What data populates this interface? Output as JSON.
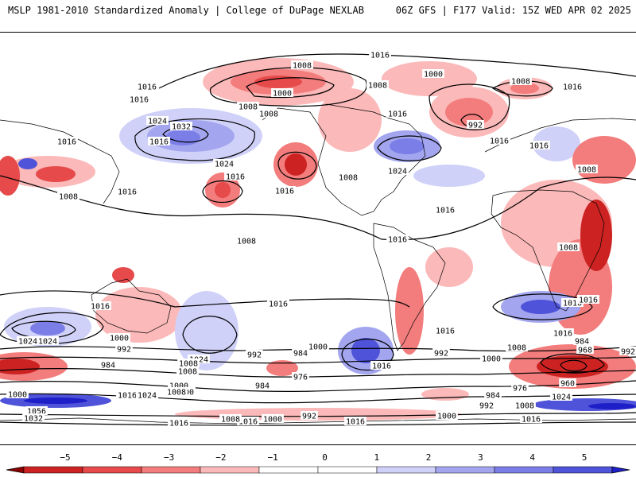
{
  "header": {
    "left": "MSLP 1981-2010 Standardized Anomaly | College of DuPage NEXLAB",
    "right": "06Z GFS | F177 Valid: 15Z WED APR 02 2025"
  },
  "colors": {
    "neg5": "#8b0000",
    "neg4": "#cc2222",
    "neg3": "#e64a4a",
    "neg2": "#f37c7c",
    "neg1": "#fbb9b9",
    "pos1": "#cfd1f8",
    "pos2": "#a3a6ef",
    "pos3": "#7a7ee6",
    "pos4": "#4f53d9",
    "pos5": "#1f1fc8",
    "contour": "#000000",
    "coast": "#000000"
  },
  "colorbar": {
    "ticks": [
      "−5",
      "−4",
      "−3",
      "−2",
      "−1",
      "0",
      "1",
      "2",
      "3",
      "4",
      "5"
    ]
  },
  "contour_labels": [
    "1016",
    "1008",
    "1000",
    "1008",
    "1008",
    "1016",
    "1016",
    "1016",
    "1000",
    "992",
    "1016",
    "1024",
    "1032",
    "1016",
    "1008",
    "1008",
    "1016",
    "1024",
    "1016",
    "1016",
    "1008",
    "1024",
    "1024",
    "1016",
    "1016",
    "1016",
    "1008",
    "1008",
    "1016",
    "1008",
    "1016",
    "1016",
    "1016",
    "1016",
    "1016",
    "1016",
    "1024",
    "1000",
    "992",
    "984",
    "1008",
    "1024",
    "992",
    "984",
    "1000",
    "976",
    "1008",
    "1000",
    "1016",
    "1024",
    "992",
    "1000",
    "1008",
    "1016",
    "1008",
    "984",
    "968",
    "992",
    "960",
    "1016",
    "1000",
    "1056",
    "1032",
    "1016",
    "1024",
    "1000",
    "1008",
    "984",
    "1016",
    "1008",
    "1000",
    "992",
    "1016",
    "1000",
    "992",
    "984",
    "976",
    "1024",
    "1008",
    "1016"
  ]
}
